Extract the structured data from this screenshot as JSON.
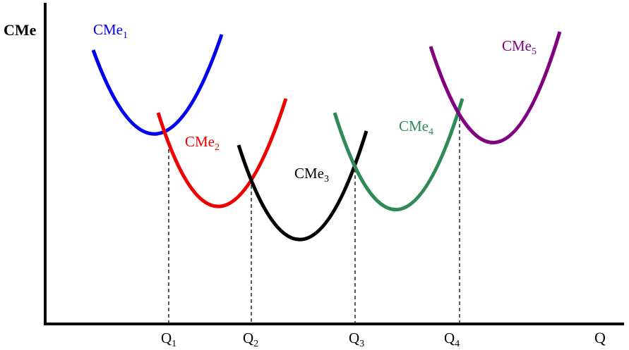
{
  "axes": {
    "y_label": "CMe",
    "x_label": "Q"
  },
  "curves": [
    {
      "label_main": "CMe",
      "label_sub": "1",
      "color": "#0000ee"
    },
    {
      "label_main": "CMe",
      "label_sub": "2",
      "color": "#ee0000"
    },
    {
      "label_main": "CMe",
      "label_sub": "3",
      "color": "#000000"
    },
    {
      "label_main": "CMe",
      "label_sub": "4",
      "color": "#2e8b57"
    },
    {
      "label_main": "CMe",
      "label_sub": "5",
      "color": "#800080"
    }
  ],
  "quantities": [
    {
      "label_main": "Q",
      "label_sub": "1"
    },
    {
      "label_main": "Q",
      "label_sub": "2"
    },
    {
      "label_main": "Q",
      "label_sub": "3"
    },
    {
      "label_main": "Q",
      "label_sub": "4"
    }
  ]
}
